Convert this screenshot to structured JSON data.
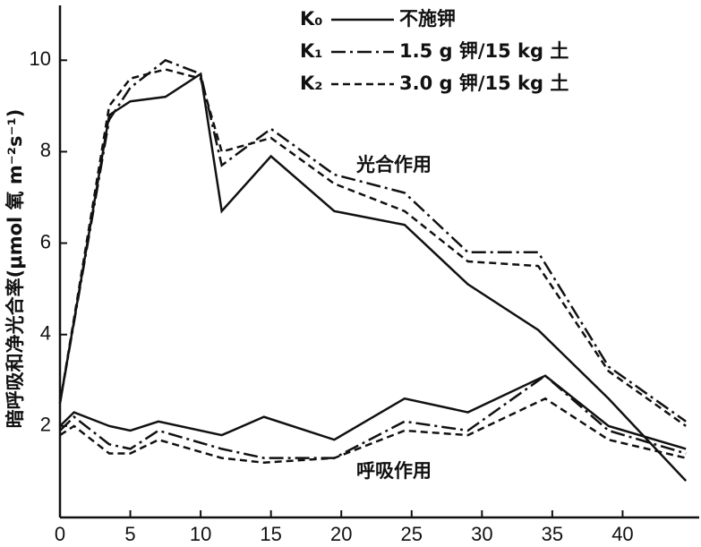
{
  "chart_data": {
    "type": "line",
    "y_label": "暗呼吸和净光合率(μmol 氧 m⁻²s⁻¹)",
    "annotations": [
      "光合作用",
      "呼吸作用"
    ],
    "xlim": [
      0,
      45
    ],
    "xticks": [
      0,
      5,
      10,
      15,
      20,
      25,
      30,
      35,
      40
    ],
    "ylim": [
      0,
      11.2
    ],
    "yticks": [
      2,
      4,
      6,
      8,
      10
    ],
    "color": "#111111",
    "series": [
      {
        "name": "K₀",
        "label": "不施钾",
        "style": "solid",
        "photosynthesis": {
          "x": [
            0,
            3.5,
            5,
            7.5,
            10,
            11.5,
            15,
            19.5,
            24.5,
            29,
            34,
            39,
            44.5
          ],
          "values": [
            2.5,
            8.8,
            9.1,
            9.2,
            9.7,
            6.7,
            7.9,
            6.7,
            6.4,
            5.1,
            4.1,
            2.6,
            0.8
          ]
        },
        "respiration": {
          "x": [
            0,
            1,
            3.5,
            5,
            7,
            11.5,
            14.5,
            19.5,
            24.5,
            29,
            34.5,
            39,
            44.5
          ],
          "values": [
            2.0,
            2.3,
            2.0,
            1.9,
            2.1,
            1.8,
            2.2,
            1.7,
            2.6,
            2.3,
            3.1,
            2.0,
            1.5
          ]
        }
      },
      {
        "name": "K₁",
        "label": "1.5 g 钾/15 kg 土",
        "style": "dashdot",
        "photosynthesis": {
          "x": [
            0,
            3.5,
            5,
            7.5,
            10,
            11.5,
            15,
            19.5,
            24.5,
            29,
            34,
            39,
            44.5
          ],
          "values": [
            2.5,
            8.7,
            9.4,
            10.0,
            9.7,
            7.7,
            8.5,
            7.5,
            7.1,
            5.8,
            5.8,
            3.3,
            2.1
          ]
        },
        "respiration": {
          "x": [
            0,
            1,
            3.5,
            5,
            7,
            11.5,
            14.5,
            19.5,
            24.5,
            29,
            34.5,
            39,
            44.5
          ],
          "values": [
            1.9,
            2.2,
            1.6,
            1.5,
            1.9,
            1.5,
            1.3,
            1.3,
            2.1,
            1.9,
            3.1,
            1.9,
            1.4
          ]
        }
      },
      {
        "name": "K₂",
        "label": "3.0 g 钾/15 kg 土",
        "style": "dashed",
        "photosynthesis": {
          "x": [
            0,
            3.5,
            5,
            7.5,
            10,
            11.5,
            15,
            19.5,
            24.5,
            29,
            34,
            39,
            44.5
          ],
          "values": [
            2.5,
            9.0,
            9.6,
            9.8,
            9.6,
            8.0,
            8.3,
            7.3,
            6.7,
            5.6,
            5.5,
            3.2,
            2.0
          ]
        },
        "respiration": {
          "x": [
            0,
            1,
            3.5,
            5,
            7,
            11.5,
            14.5,
            19.5,
            24.5,
            29,
            34.5,
            39,
            44.5
          ],
          "values": [
            1.8,
            2.0,
            1.4,
            1.4,
            1.7,
            1.3,
            1.2,
            1.3,
            1.9,
            1.8,
            2.6,
            1.7,
            1.3
          ]
        }
      }
    ]
  }
}
